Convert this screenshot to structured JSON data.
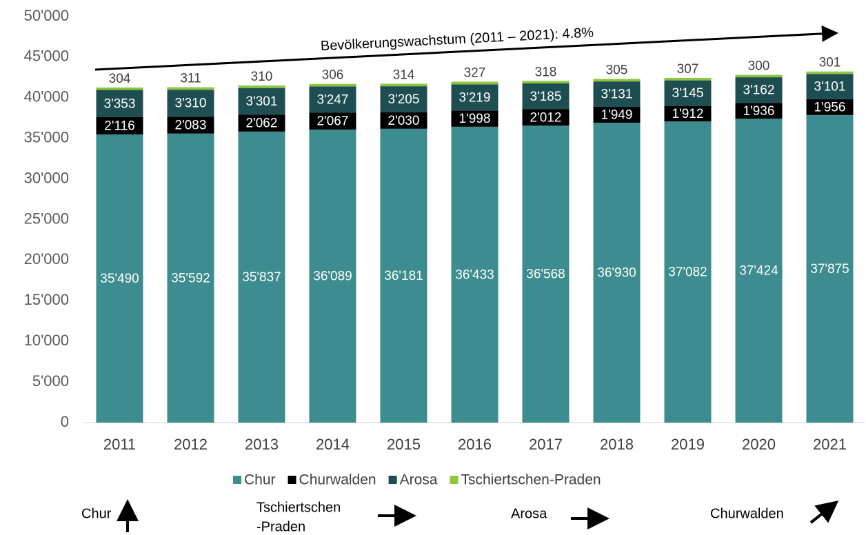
{
  "chart_data": {
    "type": "stacked_bar",
    "annotation": "Bevölkerungswachstum (2011 – 2021): 4.8%",
    "categories": [
      "2011",
      "2012",
      "2013",
      "2014",
      "2015",
      "2016",
      "2017",
      "2018",
      "2019",
      "2020",
      "2021"
    ],
    "series": [
      {
        "name": "Chur",
        "color": "#3d8c8f",
        "values": [
          35490,
          35592,
          35837,
          36089,
          36181,
          36433,
          36568,
          36930,
          37082,
          37424,
          37875
        ],
        "value_labels": [
          "35'490",
          "35'592",
          "35'837",
          "36'089",
          "36'181",
          "36'433",
          "36'568",
          "36'930",
          "37'082",
          "37'424",
          "37'875"
        ]
      },
      {
        "name": "Churwalden",
        "color": "#000000",
        "values": [
          2116,
          2083,
          2062,
          2067,
          2030,
          1998,
          2012,
          1949,
          1912,
          1936,
          1956
        ],
        "value_labels": [
          "2'116",
          "2'083",
          "2'062",
          "2'067",
          "2'030",
          "1'998",
          "2'012",
          "1'949",
          "1'912",
          "1'936",
          "1'956"
        ]
      },
      {
        "name": "Arosa",
        "color": "#1f4e52",
        "values": [
          3353,
          3310,
          3301,
          3247,
          3205,
          3219,
          3185,
          3131,
          3145,
          3162,
          3101
        ],
        "value_labels": [
          "3'353",
          "3'310",
          "3'301",
          "3'247",
          "3'205",
          "3'219",
          "3'185",
          "3'131",
          "3'145",
          "3'162",
          "3'101"
        ]
      },
      {
        "name": "Tschiertschen-Praden",
        "color": "#8dc63f",
        "values": [
          304,
          311,
          310,
          306,
          314,
          327,
          318,
          305,
          307,
          300,
          301
        ]
      }
    ],
    "ylim": [
      0,
      50000
    ],
    "yticks": [
      0,
      {
        "value": 5000,
        "label": "5'000"
      },
      {
        "value": 10000,
        "label": "10'000"
      },
      {
        "value": 15000,
        "label": "15'000"
      },
      {
        "value": 20000,
        "label": "20'000"
      },
      {
        "value": 25000,
        "label": "25'000"
      },
      {
        "value": 30000,
        "label": "30'000"
      },
      {
        "value": 35000,
        "label": "35'000"
      },
      {
        "value": 40000,
        "label": "40'000"
      },
      {
        "value": 45000,
        "label": "45'000"
      },
      {
        "value": 50000,
        "label": "50'000"
      }
    ],
    "grid": false,
    "legend": "bottom",
    "notes": [
      [
        "Chur"
      ],
      [
        "Tschiertschen",
        "-Praden"
      ],
      [
        "Arosa"
      ],
      [
        "Churwalden"
      ]
    ]
  }
}
